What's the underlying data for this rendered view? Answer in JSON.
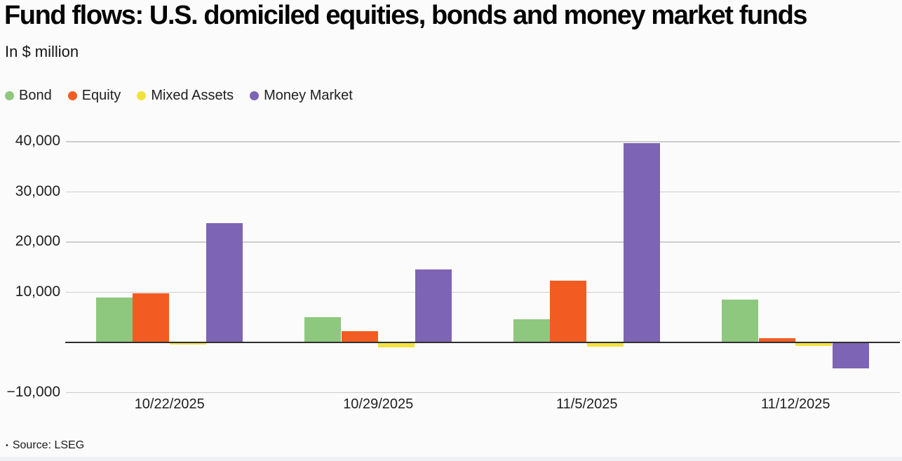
{
  "header": {
    "title": "Fund flows: U.S. domiciled equities, bonds and money market funds",
    "subtitle": "In $ million"
  },
  "source": {
    "bullet": "•",
    "label": "Source: LSEG"
  },
  "chart_data": {
    "type": "bar",
    "title": "Fund flows: U.S. domiciled equities, bonds and money market funds",
    "units": "In $ million",
    "categories": [
      "10/22/2025",
      "10/29/2025",
      "11/5/2025",
      "11/12/2025"
    ],
    "series": [
      {
        "name": "Bond",
        "color": "#8dc87e",
        "values": [
          8900,
          5000,
          4600,
          8600
        ]
      },
      {
        "name": "Equity",
        "color": "#f25c22",
        "values": [
          9800,
          2300,
          12300,
          900
        ]
      },
      {
        "name": "Mixed Assets",
        "color": "#f2e23d",
        "values": [
          -300,
          -800,
          -650,
          -600
        ]
      },
      {
        "name": "Money Market",
        "color": "#7d64b4",
        "values": [
          23800,
          14500,
          39700,
          -5100
        ]
      }
    ],
    "yticks": [
      {
        "value": 40000,
        "label": "40,000"
      },
      {
        "value": 30000,
        "label": "30,000"
      },
      {
        "value": 20000,
        "label": "20,000"
      },
      {
        "value": 10000,
        "label": "10,000"
      },
      {
        "value": -10000,
        "label": "−10,000"
      }
    ],
    "baseline": 0,
    "ylim": [
      -10000,
      42000
    ],
    "grid": true,
    "legend_position": "top-left",
    "xlabel": "",
    "ylabel": "",
    "source": "LSEG",
    "colors": {
      "gridline": "#cdcdcd",
      "axis": "#2f2f2f",
      "text": "#1f1f1f",
      "background": "#fbfbfb"
    }
  }
}
